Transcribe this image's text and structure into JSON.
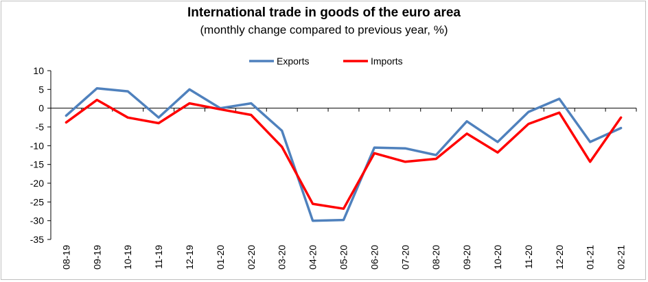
{
  "chart_data": {
    "type": "line",
    "title": "International trade in goods of the euro area",
    "subtitle": "(monthly change compared to previous year, %)",
    "categories": [
      "08-19",
      "09-19",
      "10-19",
      "11-19",
      "12-19",
      "01-20",
      "02-20",
      "03-20",
      "04-20",
      "05-20",
      "06-20",
      "07-20",
      "08-20",
      "09-20",
      "10-20",
      "11-20",
      "12-20",
      "01-21",
      "02-21"
    ],
    "series": [
      {
        "name": "Exports",
        "color": "#4f81bd",
        "values": [
          -2,
          5.3,
          4.5,
          -2.5,
          5,
          0,
          1.3,
          -6,
          -30,
          -29.8,
          -10.5,
          -10.7,
          -12.5,
          -3.5,
          -9,
          -1,
          2.5,
          -9,
          -5.3
        ]
      },
      {
        "name": "Imports",
        "color": "#ff0000",
        "values": [
          -3.8,
          2.2,
          -2.5,
          -4,
          1.3,
          -0.3,
          -1.8,
          -10.3,
          -25.5,
          -26.8,
          -12,
          -14.3,
          -13.5,
          -6.8,
          -11.8,
          -4.2,
          -1.2,
          -14.3,
          -2.5
        ]
      }
    ],
    "ylim": [
      -35,
      10
    ],
    "yticks": [
      10,
      5,
      0,
      -5,
      -10,
      -15,
      -20,
      -25,
      -30,
      -35
    ],
    "ytick_labels": [
      "10",
      "5",
      "0",
      "-5",
      "-10",
      "-15",
      "-20",
      "-25",
      "-30",
      "-35"
    ],
    "legend_position": "top-center",
    "grid": false
  }
}
